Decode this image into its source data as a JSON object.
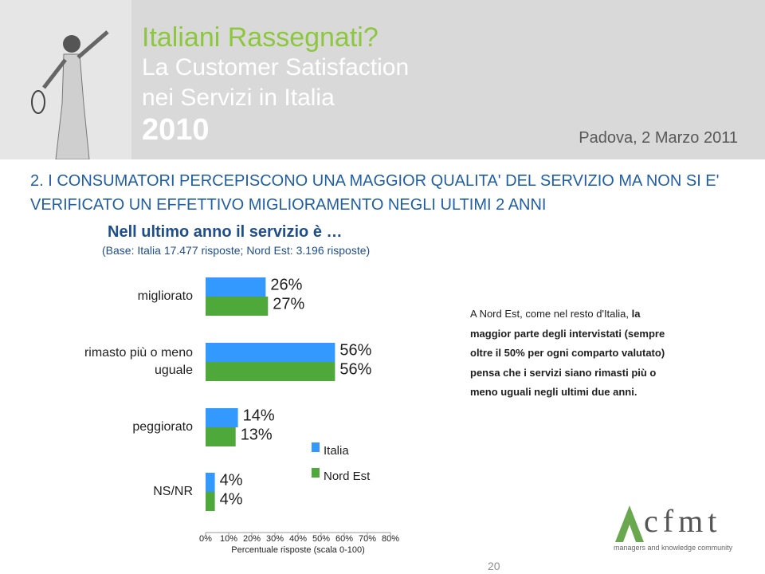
{
  "header": {
    "title": "Italiani Rassegnati?",
    "subtitle_1": "La Customer Satisfaction",
    "subtitle_2": "nei Servizi in Italia",
    "year": "2010",
    "place_date": "Padova, 2 Marzo 2011"
  },
  "heading_lines": [
    "2. I CONSUMATORI PERCEPISCONO UNA MAGGIOR QUALITA' DEL SERVIZIO MA NON SI E'",
    "VERIFICATO UN EFFETTIVO MIGLIORAMENTO NEGLI ULTIMI 2 ANNI"
  ],
  "question": "Nell ultimo anno il servizio è …",
  "base": "(Base: Italia 17.477 risposte; Nord Est: 3.196 risposte)",
  "chart_data": {
    "type": "bar",
    "orientation": "horizontal",
    "categories": [
      "migliorato",
      "rimasto più o meno uguale",
      "peggiorato",
      "NS/NR"
    ],
    "series": [
      {
        "name": "Italia",
        "color": "#3399ff",
        "values": [
          26,
          56,
          14,
          4
        ],
        "value_labels": [
          "26%",
          "56%",
          "14%",
          "4%"
        ]
      },
      {
        "name": "Nord Est",
        "color": "#4ea83a",
        "values": [
          27,
          56,
          13,
          4
        ],
        "value_labels": [
          "27%",
          "56%",
          "13%",
          "4%"
        ]
      }
    ],
    "xlim": [
      0,
      80
    ],
    "xticks": [
      {
        "value": 0,
        "label": "0%"
      },
      {
        "value": 10,
        "label": "10%"
      },
      {
        "value": 20,
        "label": "20%"
      },
      {
        "value": 30,
        "label": "30%"
      },
      {
        "value": 40,
        "label": "40%"
      },
      {
        "value": 50,
        "label": "50%"
      },
      {
        "value": 60,
        "label": "60%"
      },
      {
        "value": 70,
        "label": "70%"
      },
      {
        "value": 80,
        "label": "80%"
      }
    ],
    "x_label": "Percentuale risposte (scala 0-100)"
  },
  "note": {
    "first_normal": "A Nord Est, come nel resto d'Italia, ",
    "first_bold": "la",
    "bold_lines": [
      "maggior parte degli intervistati (sempre",
      "oltre il 50% per ogni comparto valutato)",
      "pensa che i servizi siano rimasti  più o",
      "meno uguali  negli ultimi due anni."
    ]
  },
  "page_number": "20",
  "logo": {
    "name": "cfmt",
    "tagline": "managers and knowledge community"
  }
}
